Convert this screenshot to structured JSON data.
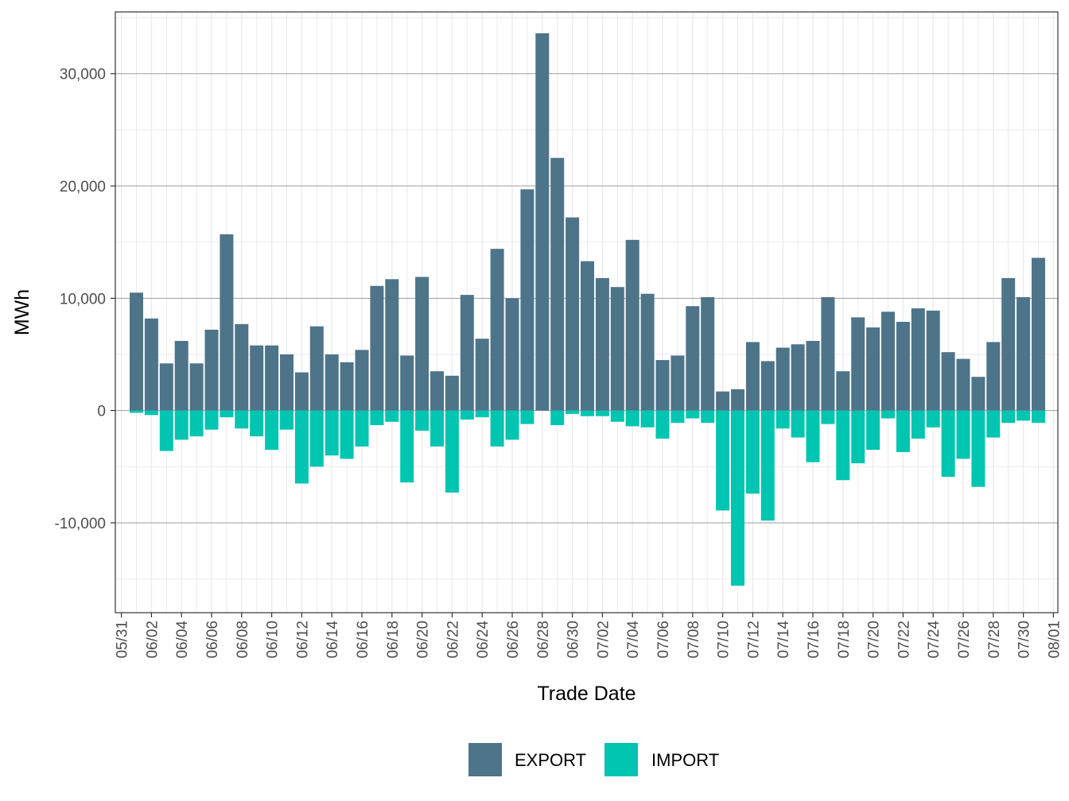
{
  "chart_data": {
    "type": "bar",
    "stacked": true,
    "xlabel": "Trade Date",
    "ylabel": "MWh",
    "ylim": [
      -18000,
      35500
    ],
    "y_ticks": [
      -10000,
      0,
      10000,
      20000,
      30000
    ],
    "y_tick_labels": [
      "-10,000",
      "0",
      "10,000",
      "20,000",
      "30,000"
    ],
    "x_tick_labels": [
      "05/31",
      "06/02",
      "06/04",
      "06/06",
      "06/08",
      "06/10",
      "06/12",
      "06/14",
      "06/16",
      "06/18",
      "06/20",
      "06/22",
      "06/24",
      "06/26",
      "06/28",
      "06/30",
      "07/02",
      "07/04",
      "07/06",
      "07/08",
      "07/10",
      "07/12",
      "07/14",
      "07/16",
      "07/18",
      "07/20",
      "07/22",
      "07/24",
      "07/26",
      "07/28",
      "07/30",
      "08/01"
    ],
    "grid": true,
    "legend_position": "bottom",
    "categories": [
      "06/01",
      "06/02",
      "06/03",
      "06/04",
      "06/05",
      "06/06",
      "06/07",
      "06/08",
      "06/09",
      "06/10",
      "06/11",
      "06/12",
      "06/13",
      "06/14",
      "06/15",
      "06/16",
      "06/17",
      "06/18",
      "06/19",
      "06/20",
      "06/21",
      "06/22",
      "06/23",
      "06/24",
      "06/25",
      "06/26",
      "06/27",
      "06/28",
      "06/29",
      "06/30",
      "07/01",
      "07/02",
      "07/03",
      "07/04",
      "07/05",
      "07/06",
      "07/07",
      "07/08",
      "07/09",
      "07/10",
      "07/11",
      "07/12",
      "07/13",
      "07/14",
      "07/15",
      "07/16",
      "07/17",
      "07/18",
      "07/19",
      "07/20",
      "07/21",
      "07/22",
      "07/23",
      "07/24",
      "07/25",
      "07/26",
      "07/27",
      "07/28",
      "07/29",
      "07/30",
      "07/31"
    ],
    "series": [
      {
        "name": "EXPORT",
        "color": "#4e7489",
        "values": [
          10500,
          8200,
          4200,
          6200,
          4200,
          7200,
          15700,
          7700,
          5800,
          5800,
          5000,
          3400,
          7500,
          5000,
          4300,
          5400,
          11100,
          11700,
          4900,
          11900,
          3500,
          3100,
          10300,
          6400,
          14400,
          10000,
          19700,
          33600,
          22500,
          17200,
          13300,
          11800,
          11000,
          15200,
          10400,
          4500,
          4900,
          9300,
          10100,
          1700,
          1900,
          6100,
          4400,
          5600,
          5900,
          6200,
          10100,
          3500,
          8300,
          7400,
          8800,
          7900,
          9100,
          8900,
          5200,
          4600,
          3000,
          6100,
          11800,
          10100,
          13600
        ]
      },
      {
        "name": "IMPORT",
        "color": "#00c5b0",
        "values": [
          -200,
          -400,
          -3600,
          -2600,
          -2300,
          -1700,
          -600,
          -1600,
          -2300,
          -3500,
          -1700,
          -6500,
          -5000,
          -4000,
          -4300,
          -3200,
          -1300,
          -1000,
          -6400,
          -1800,
          -3200,
          -7300,
          -800,
          -600,
          -3200,
          -2600,
          -1200,
          0,
          -1300,
          -300,
          -500,
          -500,
          -1000,
          -1400,
          -1500,
          -2500,
          -1100,
          -700,
          -1100,
          -8900,
          -15600,
          -7400,
          -9800,
          -1600,
          -2400,
          -4600,
          -1200,
          -6200,
          -4700,
          -3500,
          -700,
          -3700,
          -2500,
          -1500,
          -5900,
          -4300,
          -6800,
          -2400,
          -1100,
          -900,
          -1100
        ]
      }
    ]
  }
}
